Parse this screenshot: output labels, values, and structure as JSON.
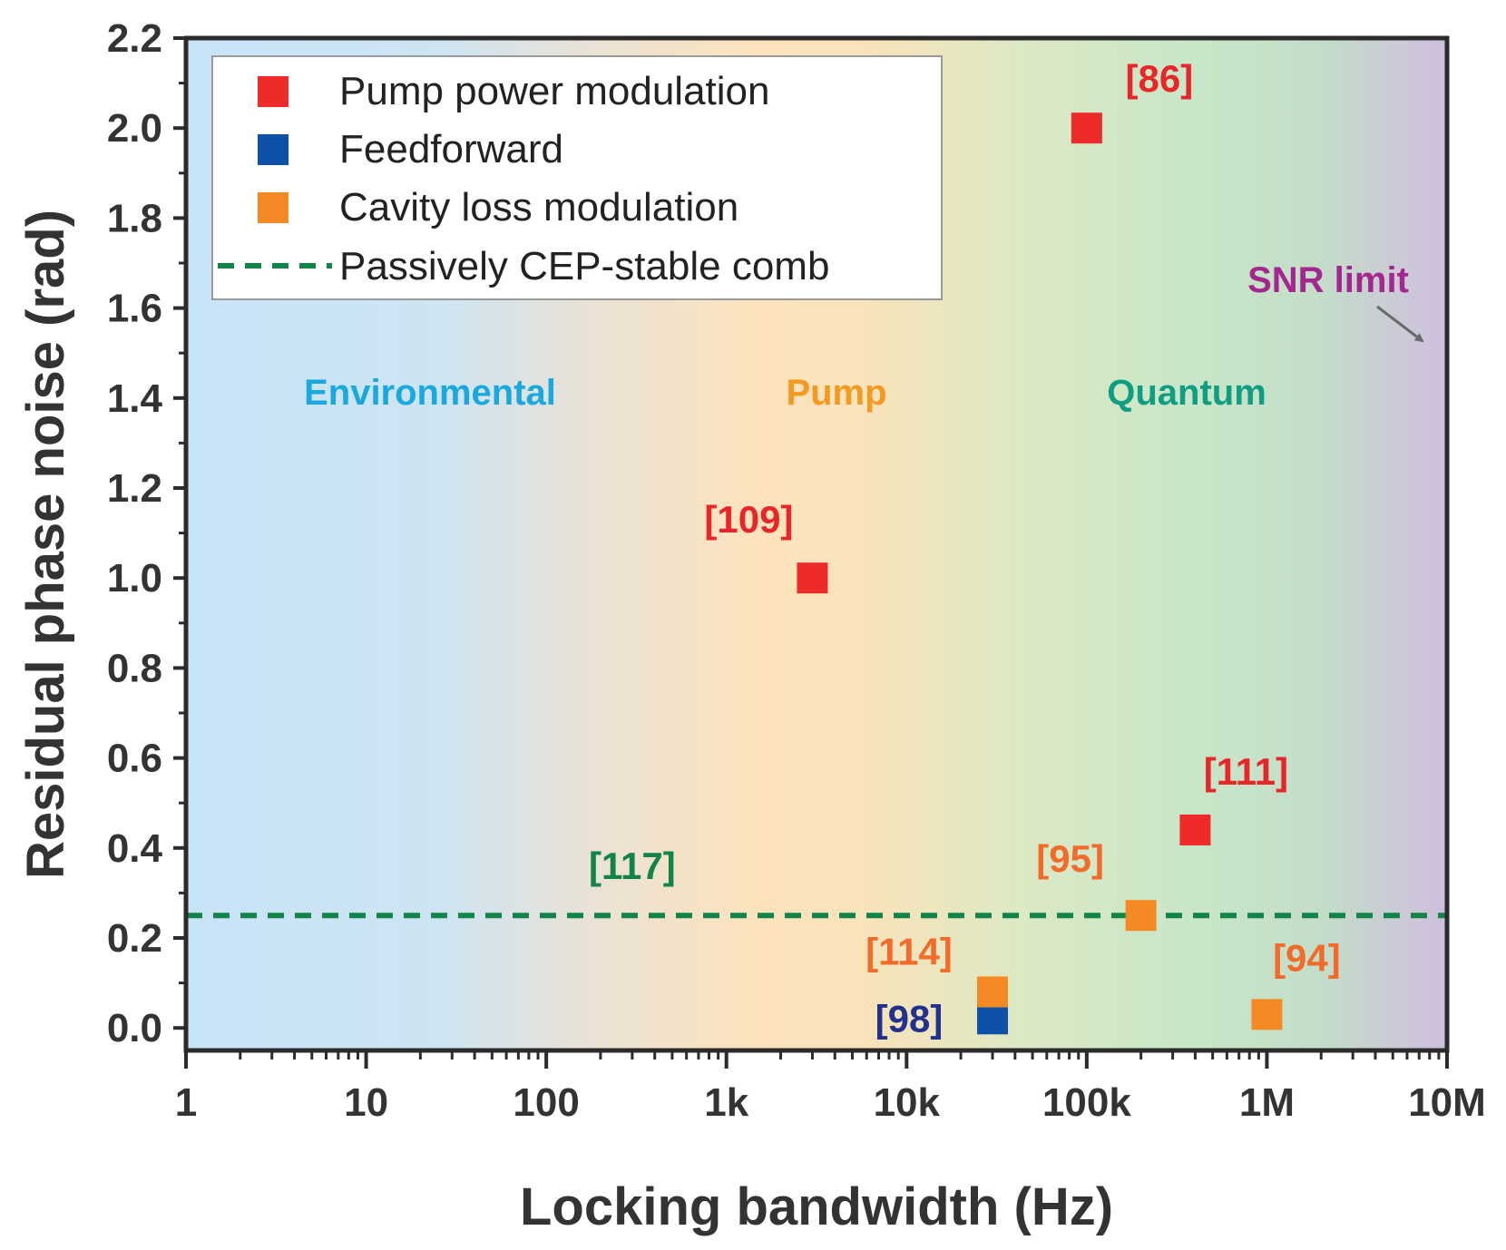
{
  "chart_data": {
    "type": "scatter",
    "xlabel": "Locking bandwidth (Hz)",
    "ylabel": "Residual phase noise (rad)",
    "xscale": "log",
    "xlim": [
      1,
      10000000
    ],
    "ylim": [
      -0.05,
      2.2
    ],
    "x_ticks": [
      {
        "value": 1,
        "label": "1"
      },
      {
        "value": 10,
        "label": "10"
      },
      {
        "value": 100,
        "label": "100"
      },
      {
        "value": 1000,
        "label": "1k"
      },
      {
        "value": 10000,
        "label": "10k"
      },
      {
        "value": 100000,
        "label": "100k"
      },
      {
        "value": 1000000,
        "label": "1M"
      },
      {
        "value": 10000000,
        "label": "10M"
      }
    ],
    "y_ticks": [
      {
        "value": 0.0,
        "label": "0.0"
      },
      {
        "value": 0.2,
        "label": "0.2"
      },
      {
        "value": 0.4,
        "label": "0.4"
      },
      {
        "value": 0.6,
        "label": "0.6"
      },
      {
        "value": 0.8,
        "label": "0.8"
      },
      {
        "value": 1.0,
        "label": "1.0"
      },
      {
        "value": 1.2,
        "label": "1.2"
      },
      {
        "value": 1.4,
        "label": "1.4"
      },
      {
        "value": 1.6,
        "label": "1.6"
      },
      {
        "value": 1.8,
        "label": "1.8"
      },
      {
        "value": 2.0,
        "label": "2.0"
      },
      {
        "value": 2.2,
        "label": "2.2"
      }
    ],
    "series": [
      {
        "name": "Pump power modulation",
        "color": "#ee2b2b",
        "label_color": "#e8262a",
        "points": [
          {
            "x": 100000,
            "y": 2.0,
            "label": "[86]"
          },
          {
            "x": 3000,
            "y": 1.0,
            "label": "[109]"
          },
          {
            "x": 400000,
            "y": 0.44,
            "label": "[111]"
          }
        ]
      },
      {
        "name": "Feedforward",
        "color": "#0d52a8",
        "label_color": "#23318e",
        "points": [
          {
            "x": 30000,
            "y": 0.02,
            "label": "[98]"
          }
        ]
      },
      {
        "name": "Cavity loss modulation",
        "color": "#f58a25",
        "label_color": "#f26b2a",
        "points": [
          {
            "x": 30000,
            "y": 0.08,
            "label": "[114]"
          },
          {
            "x": 200000,
            "y": 0.25,
            "label": "[95]"
          },
          {
            "x": 1000000,
            "y": 0.03,
            "label": "[94]"
          }
        ]
      }
    ],
    "reference_line": {
      "name": "Passively CEP-stable comb",
      "y": 0.25,
      "color": "#12844a",
      "label": "[117]"
    },
    "region_labels": [
      {
        "text": "Environmental",
        "color": "#1aa8e0"
      },
      {
        "text": "Pump",
        "color": "#f59a20"
      },
      {
        "text": "Quantum",
        "color": "#0e9e82"
      },
      {
        "text": "SNR limit",
        "color": "#a3278f"
      }
    ],
    "legend_position": "top-left"
  }
}
